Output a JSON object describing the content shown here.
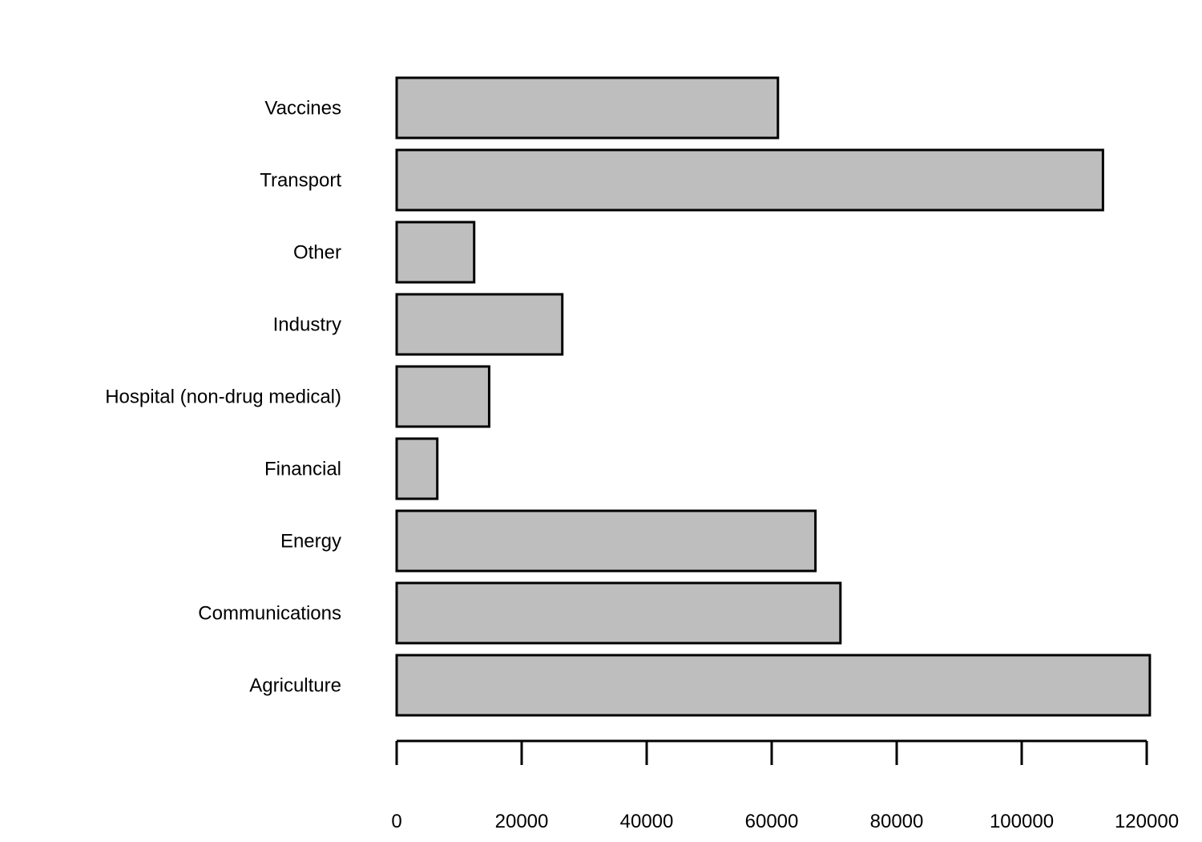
{
  "chart_data": {
    "type": "bar",
    "orientation": "horizontal",
    "categories": [
      "Agriculture",
      "Communications",
      "Energy",
      "Financial",
      "Hospital (non-drug medical)",
      "Industry",
      "Other",
      "Transport",
      "Vaccines"
    ],
    "values": [
      120500,
      71000,
      67000,
      6500,
      14800,
      26500,
      12400,
      113000,
      61000
    ],
    "title": "",
    "xlabel": "",
    "ylabel": "",
    "xlim": [
      0,
      120000
    ],
    "xticks": [
      0,
      20000,
      40000,
      60000,
      80000,
      100000,
      120000
    ],
    "grid": false,
    "colors": {
      "bar_fill": "#bebebe",
      "bar_stroke": "#000000",
      "axis": "#000000",
      "background": "#ffffff"
    }
  }
}
